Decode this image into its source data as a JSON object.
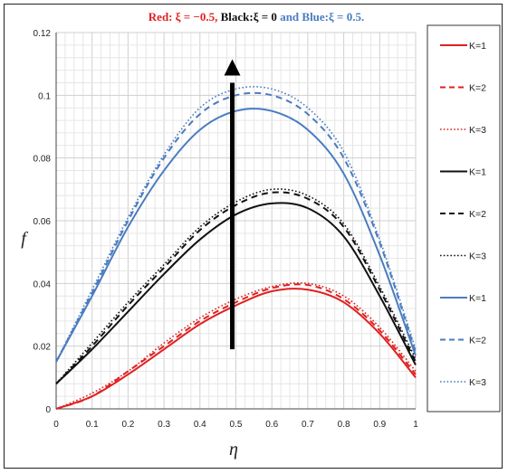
{
  "chart_data": {
    "type": "line",
    "title_parts": [
      {
        "text": "Red: ξ = −0.5, ",
        "color": "#e02020"
      },
      {
        "text": "Black:ξ = 0 ",
        "color": "#111111"
      },
      {
        "text": "and Blue:ξ = 0.5.",
        "color": "#4a7cc0"
      }
    ],
    "xlabel": "η",
    "ylabel": "f",
    "xlim": [
      0,
      1
    ],
    "ylim": [
      0,
      0.12
    ],
    "x_ticks": [
      "0",
      "0.1",
      "0.2",
      "0.3",
      "0.4",
      "0.5",
      "0.6",
      "0.7",
      "0.8",
      "0.9",
      "1"
    ],
    "y_ticks": [
      "0",
      "0.02",
      "0.04",
      "0.06",
      "0.08",
      "0.1",
      "0.12"
    ],
    "grid": true,
    "legend_position": "right",
    "annotation": "upward arrow at η = 0.5 from f ≈ 0.02 to f ≈ 0.11 indicating increasing ξ",
    "x": [
      0,
      0.1,
      0.2,
      0.3,
      0.4,
      0.5,
      0.6,
      0.7,
      0.8,
      0.9,
      1.0
    ],
    "series": [
      {
        "name": "K=1",
        "color": "#e02020",
        "dash": "solid",
        "values": [
          0.0,
          0.004,
          0.011,
          0.019,
          0.027,
          0.033,
          0.0375,
          0.038,
          0.034,
          0.024,
          0.01
        ]
      },
      {
        "name": "K=2",
        "color": "#e02020",
        "dash": "dashed",
        "values": [
          0.0,
          0.004,
          0.012,
          0.02,
          0.028,
          0.034,
          0.0385,
          0.0395,
          0.035,
          0.025,
          0.011
        ]
      },
      {
        "name": "K=3",
        "color": "#e02020",
        "dash": "dotted",
        "values": [
          0.0,
          0.005,
          0.012,
          0.021,
          0.029,
          0.035,
          0.039,
          0.04,
          0.036,
          0.026,
          0.012
        ]
      },
      {
        "name": "K=1",
        "color": "#111111",
        "dash": "solid",
        "values": [
          0.008,
          0.019,
          0.031,
          0.043,
          0.054,
          0.062,
          0.0655,
          0.064,
          0.055,
          0.036,
          0.014
        ]
      },
      {
        "name": "K=2",
        "color": "#111111",
        "dash": "dashed",
        "values": [
          0.008,
          0.02,
          0.033,
          0.045,
          0.057,
          0.065,
          0.069,
          0.067,
          0.058,
          0.038,
          0.015
        ]
      },
      {
        "name": "K=3",
        "color": "#111111",
        "dash": "dotted",
        "values": [
          0.008,
          0.021,
          0.034,
          0.046,
          0.058,
          0.066,
          0.07,
          0.068,
          0.059,
          0.039,
          0.016
        ]
      },
      {
        "name": "K=1",
        "color": "#4a7cc0",
        "dash": "solid",
        "values": [
          0.015,
          0.036,
          0.058,
          0.076,
          0.089,
          0.095,
          0.095,
          0.089,
          0.075,
          0.049,
          0.017
        ]
      },
      {
        "name": "K=2",
        "color": "#4a7cc0",
        "dash": "dashed",
        "values": [
          0.015,
          0.037,
          0.06,
          0.08,
          0.094,
          0.1,
          0.1,
          0.094,
          0.08,
          0.053,
          0.018
        ]
      },
      {
        "name": "K=3",
        "color": "#4a7cc0",
        "dash": "dotted",
        "values": [
          0.015,
          0.038,
          0.061,
          0.081,
          0.096,
          0.102,
          0.102,
          0.096,
          0.082,
          0.054,
          0.019
        ]
      }
    ]
  }
}
